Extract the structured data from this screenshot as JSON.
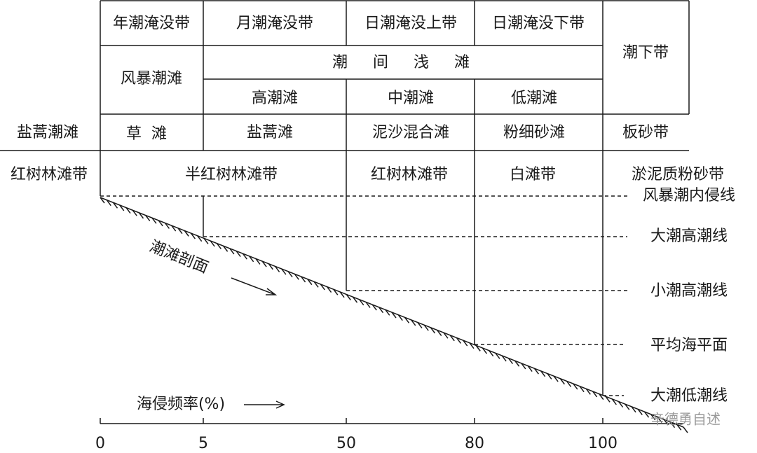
{
  "table": {
    "row1": [
      "年潮淹没带",
      "月潮淹没带",
      "日潮淹没上带",
      "日潮淹没下带"
    ],
    "subtidal": "潮下带",
    "storm_flat": "风暴潮滩",
    "intertidal": "潮间浅滩",
    "row3": [
      "高潮滩",
      "中潮滩",
      "低潮滩"
    ],
    "row4_label": "盐蒿潮滩",
    "row4": [
      "草滩",
      "盐蒿滩",
      "泥沙混合滩",
      "粉细砂滩",
      "板砂带"
    ],
    "row5_label": "红树林滩带",
    "row5": [
      "半红树林滩带",
      "红树林滩带",
      "白滩带",
      "淤泥质粉砂带"
    ]
  },
  "levels": [
    "风暴潮内侵线",
    "大潮高潮线",
    "小潮高潮线",
    "平均海平面",
    "大潮低潮线"
  ],
  "profile_label": "潮滩剖面",
  "axis": {
    "label": "海侵频率(%)",
    "ticks": [
      "0",
      "5",
      "50",
      "80",
      "100"
    ]
  },
  "watermark": "辛德勇自述"
}
